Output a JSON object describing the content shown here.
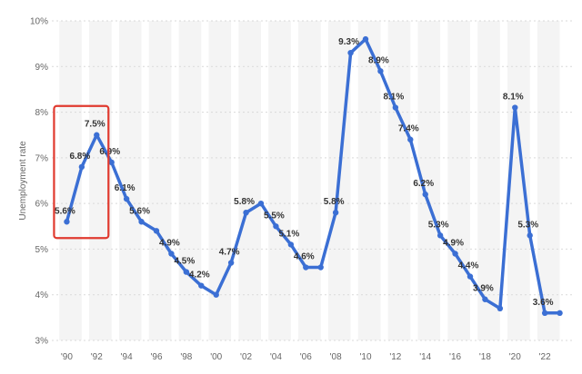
{
  "chart_data": {
    "type": "line",
    "ylabel": "Unemployment rate",
    "ylim": [
      3,
      10
    ],
    "yticks": [
      "3%",
      "4%",
      "5%",
      "6%",
      "7%",
      "8%",
      "9%",
      "10%"
    ],
    "xticks": [
      {
        "year": 1990,
        "label": "'90"
      },
      {
        "year": 1992,
        "label": "'92"
      },
      {
        "year": 1994,
        "label": "'94"
      },
      {
        "year": 1996,
        "label": "'96"
      },
      {
        "year": 1998,
        "label": "'98"
      },
      {
        "year": 2000,
        "label": "'00"
      },
      {
        "year": 2002,
        "label": "'02"
      },
      {
        "year": 2004,
        "label": "'04"
      },
      {
        "year": 2006,
        "label": "'06"
      },
      {
        "year": 2008,
        "label": "'08"
      },
      {
        "year": 2010,
        "label": "'10"
      },
      {
        "year": 2012,
        "label": "'12"
      },
      {
        "year": 2014,
        "label": "'14"
      },
      {
        "year": 2016,
        "label": "'16"
      },
      {
        "year": 2018,
        "label": "'18"
      },
      {
        "year": 2020,
        "label": "'20"
      },
      {
        "year": 2022,
        "label": "'22"
      }
    ],
    "series": [
      {
        "color": "#3b6fd4",
        "points": [
          {
            "x": 1990,
            "y": 5.6,
            "label": "5.6%"
          },
          {
            "x": 1991,
            "y": 6.8,
            "label": "6.8%"
          },
          {
            "x": 1992,
            "y": 7.5,
            "label": "7.5%"
          },
          {
            "x": 1993,
            "y": 6.9,
            "label": "6.9%"
          },
          {
            "x": 1994,
            "y": 6.1,
            "label": "6.1%"
          },
          {
            "x": 1995,
            "y": 5.6,
            "label": "5.6%"
          },
          {
            "x": 1996,
            "y": 5.4,
            "label": null
          },
          {
            "x": 1997,
            "y": 4.9,
            "label": "4.9%"
          },
          {
            "x": 1998,
            "y": 4.5,
            "label": "4.5%"
          },
          {
            "x": 1999,
            "y": 4.2,
            "label": "4.2%"
          },
          {
            "x": 2000,
            "y": 4.0,
            "label": null
          },
          {
            "x": 2001,
            "y": 4.7,
            "label": "4.7%"
          },
          {
            "x": 2002,
            "y": 5.8,
            "label": "5.8%"
          },
          {
            "x": 2003,
            "y": 6.0,
            "label": null
          },
          {
            "x": 2004,
            "y": 5.5,
            "label": "5.5%"
          },
          {
            "x": 2005,
            "y": 5.1,
            "label": "5.1%"
          },
          {
            "x": 2006,
            "y": 4.6,
            "label": "4.6%"
          },
          {
            "x": 2007,
            "y": 4.6,
            "label": null
          },
          {
            "x": 2008,
            "y": 5.8,
            "label": "5.8%"
          },
          {
            "x": 2009,
            "y": 9.3,
            "label": "9.3%"
          },
          {
            "x": 2010,
            "y": 9.6,
            "label": null
          },
          {
            "x": 2011,
            "y": 8.9,
            "label": "8.9%"
          },
          {
            "x": 2012,
            "y": 8.1,
            "label": "8.1%"
          },
          {
            "x": 2013,
            "y": 7.4,
            "label": "7.4%"
          },
          {
            "x": 2014,
            "y": 6.2,
            "label": "6.2%"
          },
          {
            "x": 2015,
            "y": 5.3,
            "label": "5.3%"
          },
          {
            "x": 2016,
            "y": 4.9,
            "label": "4.9%"
          },
          {
            "x": 2017,
            "y": 4.4,
            "label": "4.4%"
          },
          {
            "x": 2018,
            "y": 3.9,
            "label": "3.9%"
          },
          {
            "x": 2019,
            "y": 3.7,
            "label": null
          },
          {
            "x": 2020,
            "y": 8.1,
            "label": "8.1%"
          },
          {
            "x": 2021,
            "y": 5.3,
            "label": "5.3%"
          },
          {
            "x": 2022,
            "y": 3.6,
            "label": "3.6%"
          },
          {
            "x": 2023,
            "y": 3.6,
            "label": null
          }
        ]
      }
    ],
    "highlight": {
      "x_range": [
        1990,
        1992
      ],
      "y_range": [
        5.6,
        7.5
      ],
      "color": "#e03a2f"
    },
    "grid": true,
    "alternating_year_bands": true
  }
}
